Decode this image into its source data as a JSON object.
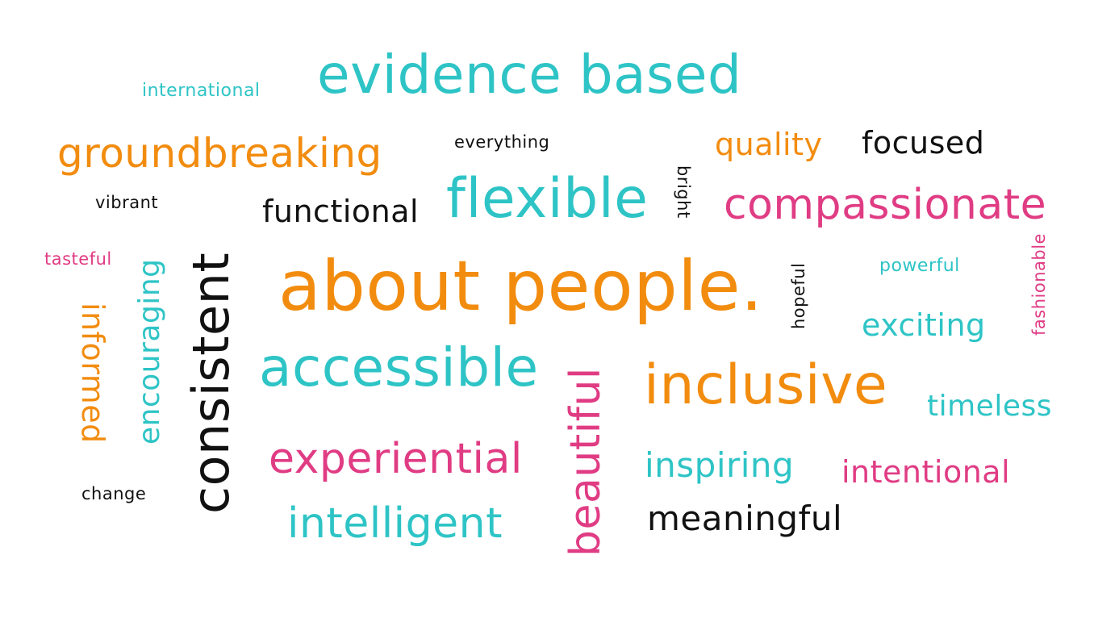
{
  "colors": {
    "teal": "#2ec4c6",
    "orange": "#f28c0f",
    "pink": "#e03c84",
    "black": "#111111"
  },
  "words": {
    "evidence_based": "evidence based",
    "international": "international",
    "groundbreaking": "groundbreaking",
    "everything": "everything",
    "quality": "quality",
    "focused": "focused",
    "vibrant": "vibrant",
    "functional": "functional",
    "flexible": "flexible",
    "bright": "bright",
    "compassionate": "compassionate",
    "tasteful": "tasteful",
    "encouraging": "encouraging",
    "consistent": "consistent",
    "about_people": "about people.",
    "hopeful": "hopeful",
    "powerful": "powerful",
    "fashionable": "fashionable",
    "informed": "informed",
    "exciting": "exciting",
    "accessible": "accessible",
    "beautiful": "beautiful",
    "inclusive": "inclusive",
    "timeless": "timeless",
    "experiential": "experiential",
    "inspiring": "inspiring",
    "intentional": "intentional",
    "change": "change",
    "intelligent": "intelligent",
    "meaningful": "meaningful"
  }
}
